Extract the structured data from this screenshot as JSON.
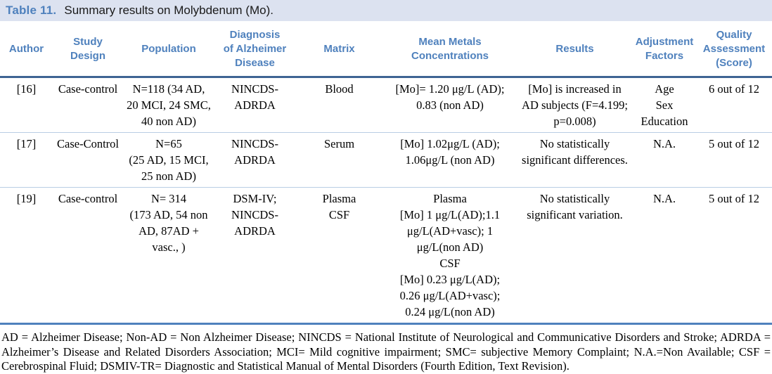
{
  "caption": {
    "label": "Table 11.",
    "text": "Summary results on Molybdenum (Mo)."
  },
  "colors": {
    "accent_blue": "#4f81bd",
    "caption_background": "#dce2f0",
    "header_rule": "#3e6493",
    "row_divider": "#b9cde4"
  },
  "table": {
    "columns": [
      {
        "label": "Author"
      },
      {
        "label": "Study\nDesign"
      },
      {
        "label": "Population"
      },
      {
        "label": "Diagnosis\nof Alzheimer\nDisease"
      },
      {
        "label": "Matrix"
      },
      {
        "label": "Mean Metals\nConcentrations"
      },
      {
        "label": "Results"
      },
      {
        "label": "Adjustment\nFactors"
      },
      {
        "label": "Quality\nAssessment\n(Score)"
      }
    ],
    "rows": [
      {
        "cells": [
          "[16]",
          "Case-control",
          "N=118 (34 AD,\n20 MCI, 24 SMC,\n40 non AD)",
          "NINCDS-\nADRDA",
          "Blood",
          "[Mo]= 1.20 μg/L (AD);\n0.83 (non AD)",
          "[Mo] is increased in\nAD subjects (F=4.199;\np=0.008)",
          "Age\nSex\nEducation",
          "6 out of 12"
        ]
      },
      {
        "cells": [
          "[17]",
          "Case-Control",
          "N=65\n(25 AD, 15 MCI,\n25 non AD)",
          "NINCDS-\nADRDA",
          "Serum",
          "[Mo] 1.02μg/L (AD);\n1.06μg/L (non AD)",
          "No statistically\nsignificant differences.",
          "N.A.",
          "5 out of 12"
        ]
      },
      {
        "cells": [
          "[19]",
          "Case-control",
          "N= 314\n(173 AD, 54 non\nAD, 87AD +\nvasc., )",
          "DSM-IV;\nNINCDS-\nADRDA",
          "Plasma\nCSF",
          "Plasma\n[Mo] 1 μg/L(AD);1.1\nμg/L(AD+vasc); 1\nμg/L(non AD)\nCSF\n[Mo] 0.23 μg/L(AD);\n0.26 μg/L(AD+vasc);\n0.24 μg/L(non AD)",
          "No statistically\nsignificant variation.",
          "N.A.",
          "5 out of 12"
        ]
      }
    ]
  },
  "footnote": {
    "text": "AD = Alzheimer Disease; Non-AD = Non Alzheimer Disease; NINCDS = National Institute of Neurological and Communicative Disorders and Stroke; ADRDA = Alzheimer’s Disease and Related Disorders Association; MCI= Mild cognitive impairment; SMC= subjective Memory Complaint; N.A.=Non Available; CSF = Cerebrospinal Fluid; DSMIV-TR= Diagnostic and Statistical Manual of Mental Disorders (Fourth Edition, Text Revision)."
  }
}
